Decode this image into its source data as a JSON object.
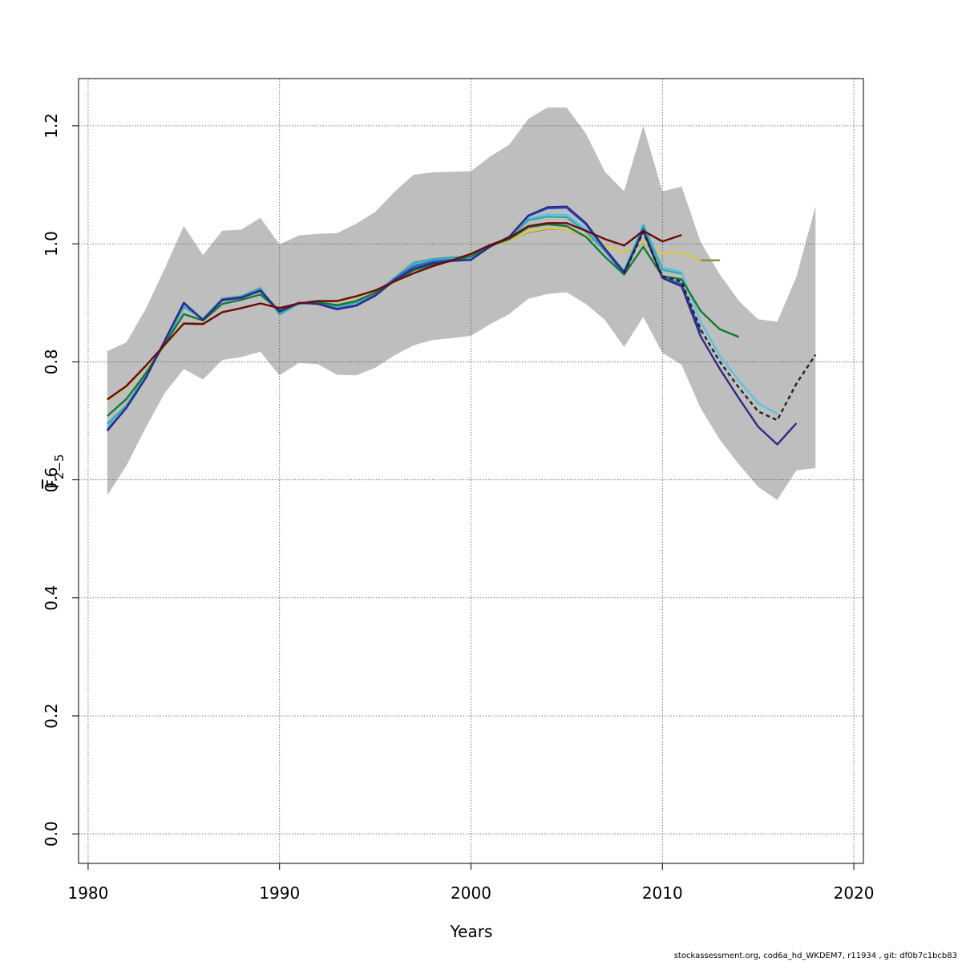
{
  "footer_text": "stockassessment.org, cod6a_hd_WKDEM7, r11934 , git: df0b7c1bcb83",
  "chart_data": {
    "type": "line",
    "xlabel": "Years",
    "ylabel": "F",
    "ylabel_sub": "2−5",
    "xlim": [
      1979.5,
      2020.5
    ],
    "ylim": [
      -0.05,
      1.28
    ],
    "xticks": [
      1980,
      1990,
      2000,
      2010,
      2020
    ],
    "yticks": [
      0.0,
      0.2,
      0.4,
      0.6,
      0.8,
      1.0,
      1.2
    ],
    "ytick_labels": [
      "0.0",
      "0.2",
      "0.4",
      "0.6",
      "0.8",
      "1.0",
      "1.2"
    ],
    "grid": true,
    "band_color": "#bebebe",
    "band": {
      "x": [
        1981,
        1982,
        1983,
        1984,
        1985,
        1986,
        1987,
        1988,
        1989,
        1990,
        1991,
        1992,
        1993,
        1994,
        1995,
        1996,
        1997,
        1998,
        1999,
        2000,
        2001,
        2002,
        2003,
        2004,
        2005,
        2006,
        2007,
        2008,
        2009,
        2010,
        2011,
        2012,
        2013,
        2014,
        2015,
        2016,
        2017,
        2018
      ],
      "upper": [
        0.818,
        0.833,
        0.889,
        0.958,
        1.03,
        0.981,
        1.022,
        1.024,
        1.044,
        0.999,
        1.014,
        1.017,
        1.018,
        1.034,
        1.054,
        1.088,
        1.117,
        1.121,
        1.122,
        1.123,
        1.148,
        1.168,
        1.212,
        1.231,
        1.231,
        1.187,
        1.122,
        1.089,
        1.2,
        1.089,
        1.097,
        1.003,
        0.948,
        0.903,
        0.872,
        0.868,
        0.944,
        1.064
      ],
      "lower": [
        0.574,
        0.624,
        0.688,
        0.747,
        0.788,
        0.77,
        0.803,
        0.808,
        0.817,
        0.777,
        0.798,
        0.796,
        0.778,
        0.777,
        0.79,
        0.811,
        0.828,
        0.837,
        0.84,
        0.844,
        0.864,
        0.881,
        0.907,
        0.915,
        0.918,
        0.898,
        0.871,
        0.825,
        0.876,
        0.815,
        0.795,
        0.721,
        0.668,
        0.626,
        0.588,
        0.566,
        0.616,
        0.62
      ]
    },
    "series": [
      {
        "color": "#8a8a3a",
        "x": [
          1981,
          1982,
          1983,
          1984,
          1985,
          1986,
          1987,
          1988,
          1989,
          1990,
          1991,
          1992,
          1993,
          1994,
          1995,
          1996,
          1997,
          1998,
          1999,
          2000,
          2001,
          2002,
          2003,
          2004,
          2005,
          2006,
          2007,
          2008,
          2009,
          2010,
          2011,
          2012,
          2013
        ],
        "y": [
          0.735,
          0.758,
          0.792,
          0.828,
          0.864,
          0.864,
          0.884,
          0.891,
          0.899,
          0.891,
          0.899,
          0.902,
          0.902,
          0.91,
          0.92,
          0.935,
          0.95,
          0.962,
          0.972,
          0.983,
          0.996,
          1.006,
          1.02,
          1.025,
          1.025,
          1.013,
          0.998,
          0.985,
          1.002,
          0.983,
          0.986,
          0.972,
          0.972
        ]
      },
      {
        "color": "#d9c94a",
        "x": [
          1981,
          1982,
          1983,
          1984,
          1985,
          1986,
          1987,
          1988,
          1989,
          1990,
          1991,
          1992,
          1993,
          1994,
          1995,
          1996,
          1997,
          1998,
          1999,
          2000,
          2001,
          2002,
          2003,
          2004,
          2005,
          2006,
          2007,
          2008,
          2009,
          2010,
          2011,
          2012
        ],
        "y": [
          0.735,
          0.757,
          0.791,
          0.828,
          0.864,
          0.865,
          0.884,
          0.891,
          0.899,
          0.89,
          0.898,
          0.902,
          0.902,
          0.91,
          0.92,
          0.935,
          0.95,
          0.962,
          0.972,
          0.983,
          0.995,
          1.006,
          1.021,
          1.026,
          1.025,
          1.014,
          0.998,
          0.985,
          1.003,
          0.983,
          0.986,
          0.972
        ]
      },
      {
        "color": "#5fc1e3",
        "x": [
          1981,
          1982,
          1983,
          1984,
          1985,
          1986,
          1987,
          1988,
          1989,
          1990,
          1991,
          1992,
          1993,
          1994,
          1995,
          1996,
          1997,
          1998,
          1999,
          2000,
          2001,
          2002,
          2003,
          2004,
          2005,
          2006,
          2007,
          2008,
          2009,
          2010,
          2011,
          2012,
          2013,
          2014,
          2015,
          2016
        ],
        "y": [
          0.69,
          0.725,
          0.775,
          0.832,
          0.893,
          0.872,
          0.906,
          0.91,
          0.922,
          0.882,
          0.898,
          0.9,
          0.893,
          0.9,
          0.915,
          0.94,
          0.965,
          0.972,
          0.975,
          0.976,
          0.996,
          1.01,
          1.043,
          1.05,
          1.049,
          1.025,
          0.99,
          0.955,
          1.033,
          0.96,
          0.952,
          0.868,
          0.81,
          0.768,
          0.73,
          0.712
        ]
      },
      {
        "color": "#3aa8a8",
        "x": [
          1981,
          1982,
          1983,
          1984,
          1985,
          1986,
          1987,
          1988,
          1989,
          1990,
          1991,
          1992,
          1993,
          1994,
          1995,
          1996,
          1997,
          1998,
          1999,
          2000,
          2001,
          2002,
          2003,
          2004,
          2005,
          2006,
          2007,
          2008,
          2009,
          2010,
          2011
        ],
        "y": [
          0.695,
          0.726,
          0.778,
          0.834,
          0.893,
          0.873,
          0.907,
          0.911,
          0.925,
          0.88,
          0.899,
          0.901,
          0.894,
          0.901,
          0.916,
          0.942,
          0.968,
          0.974,
          0.977,
          0.978,
          0.996,
          1.01,
          1.04,
          1.046,
          1.045,
          1.021,
          0.988,
          0.952,
          1.03,
          0.956,
          0.949
        ]
      },
      {
        "color": "#2f5ec4",
        "x": [
          1981,
          1982,
          1983,
          1984,
          1985,
          1986,
          1987,
          1988,
          1989,
          1990,
          1991,
          1992,
          1993,
          1994,
          1995,
          1996,
          1997,
          1998,
          1999,
          2000,
          2001,
          2002,
          2003,
          2004,
          2005,
          2006,
          2007,
          2008,
          2009,
          2010,
          2011,
          2012
        ],
        "y": [
          0.685,
          0.722,
          0.772,
          0.835,
          0.899,
          0.871,
          0.904,
          0.908,
          0.92,
          0.885,
          0.9,
          0.899,
          0.89,
          0.896,
          0.913,
          0.94,
          0.962,
          0.97,
          0.973,
          0.973,
          0.996,
          1.012,
          1.047,
          1.06,
          1.061,
          1.033,
          0.99,
          0.948,
          1.025,
          0.943,
          0.932,
          0.85
        ]
      },
      {
        "color": "#137a35",
        "x": [
          1981,
          1982,
          1983,
          1984,
          1985,
          1986,
          1987,
          1988,
          1989,
          1990,
          1991,
          1992,
          1993,
          1994,
          1995,
          1996,
          1997,
          1998,
          1999,
          2000,
          2001,
          2002,
          2003,
          2004,
          2005,
          2006,
          2007,
          2008,
          2009,
          2010,
          2011,
          2012,
          2013,
          2014
        ],
        "y": [
          0.708,
          0.737,
          0.78,
          0.83,
          0.881,
          0.87,
          0.898,
          0.905,
          0.914,
          0.887,
          0.899,
          0.901,
          0.896,
          0.903,
          0.917,
          0.937,
          0.955,
          0.965,
          0.971,
          0.979,
          0.996,
          1.008,
          1.028,
          1.033,
          1.03,
          1.012,
          0.978,
          0.948,
          0.995,
          0.945,
          0.94,
          0.886,
          0.855,
          0.842
        ]
      },
      {
        "color": "#2e2a8c",
        "x": [
          1981,
          1982,
          1983,
          1984,
          1985,
          1986,
          1987,
          1988,
          1989,
          1990,
          1991,
          1992,
          1993,
          1994,
          1995,
          1996,
          1997,
          1998,
          1999,
          2000,
          2001,
          2002,
          2003,
          2004,
          2005,
          2006,
          2007,
          2008,
          2009,
          2010,
          2011,
          2012,
          2013,
          2014,
          2015,
          2016,
          2017
        ],
        "y": [
          0.683,
          0.722,
          0.772,
          0.836,
          0.9,
          0.871,
          0.905,
          0.909,
          0.921,
          0.885,
          0.9,
          0.898,
          0.889,
          0.895,
          0.912,
          0.938,
          0.958,
          0.967,
          0.971,
          0.973,
          0.995,
          1.012,
          1.048,
          1.062,
          1.063,
          1.035,
          0.992,
          0.952,
          1.022,
          0.942,
          0.928,
          0.843,
          0.788,
          0.738,
          0.69,
          0.66,
          0.696
        ]
      },
      {
        "color": "#222222",
        "dashed": true,
        "x": [
          2008,
          2009,
          2010,
          2011,
          2012,
          2013,
          2014,
          2015,
          2016,
          2017,
          2018
        ],
        "y": [
          0.95,
          1.02,
          0.945,
          0.936,
          0.855,
          0.8,
          0.756,
          0.716,
          0.701,
          0.763,
          0.812
        ]
      },
      {
        "color": "#6a0a0a",
        "x": [
          1981,
          1982,
          1983,
          1984,
          1985,
          1986,
          1987,
          1988,
          1989,
          1990,
          1991,
          1992,
          1993,
          1994,
          1995,
          1996,
          1997,
          1998,
          1999,
          2000,
          2001,
          2002,
          2003,
          2004,
          2005,
          2006,
          2007,
          2008,
          2009,
          2010,
          2011
        ],
        "y": [
          0.736,
          0.759,
          0.793,
          0.829,
          0.865,
          0.864,
          0.884,
          0.891,
          0.899,
          0.891,
          0.899,
          0.903,
          0.903,
          0.911,
          0.921,
          0.936,
          0.95,
          0.962,
          0.972,
          0.983,
          0.998,
          1.01,
          1.03,
          1.035,
          1.035,
          1.022,
          1.008,
          0.997,
          1.022,
          1.004,
          1.015
        ]
      }
    ]
  }
}
